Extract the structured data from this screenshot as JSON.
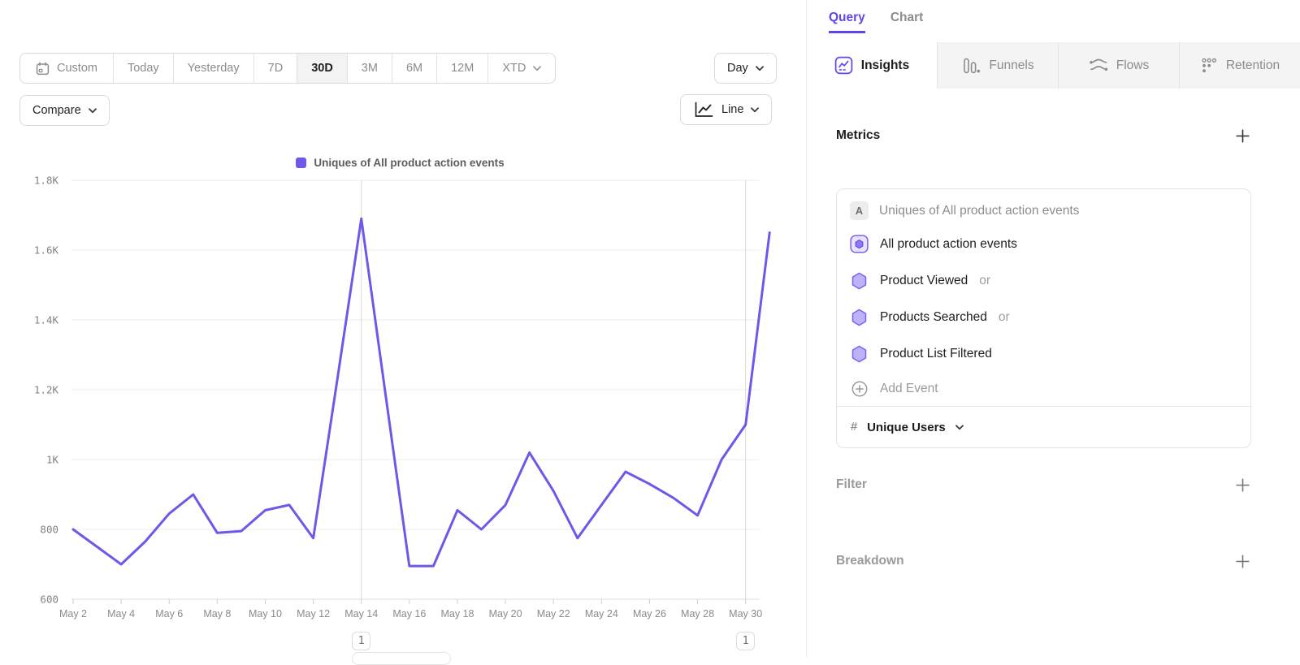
{
  "colors": {
    "accent": "#6245e9",
    "line": "#6d58e8",
    "hex_fill": "#c0b2fa",
    "hex_border": "#7b61f2",
    "gridline": "#ededed",
    "axis_line": "#dcdcdc",
    "annotation_line": "#d9d9d9",
    "axis_text": "#828282"
  },
  "toolbar": {
    "ranges": [
      {
        "label": "Custom",
        "icon": "calendar-icon",
        "active": false
      },
      {
        "label": "Today",
        "active": false
      },
      {
        "label": "Yesterday",
        "active": false
      },
      {
        "label": "7D",
        "active": false
      },
      {
        "label": "30D",
        "active": true
      },
      {
        "label": "3M",
        "active": false
      },
      {
        "label": "6M",
        "active": false
      },
      {
        "label": "12M",
        "active": false
      },
      {
        "label": "XTD",
        "active": false,
        "chevron": true
      }
    ],
    "granularity": {
      "label": "Day"
    },
    "compare": {
      "label": "Compare"
    },
    "chart_type": {
      "label": "Line",
      "icon": "line-chart-icon"
    }
  },
  "panel": {
    "tabs": [
      {
        "label": "Query",
        "active": true
      },
      {
        "label": "Chart",
        "active": false
      }
    ],
    "report_tabs": [
      {
        "label": "Insights",
        "icon": "insights-icon",
        "active": true
      },
      {
        "label": "Funnels",
        "icon": "funnels-icon",
        "active": false
      },
      {
        "label": "Flows",
        "icon": "flows-icon",
        "active": false
      },
      {
        "label": "Retention",
        "icon": "retention-icon",
        "active": false
      }
    ],
    "metrics": {
      "title": "Metrics",
      "summary": {
        "badge": "A",
        "label": "Uniques of All product action events"
      },
      "events": [
        {
          "label": "All product action events",
          "icon": "all-events-icon",
          "suffix": ""
        },
        {
          "label": "Product Viewed",
          "icon": "hexagon-icon",
          "suffix": "or"
        },
        {
          "label": "Products Searched",
          "icon": "hexagon-icon",
          "suffix": "or"
        },
        {
          "label": "Product List Filtered",
          "icon": "hexagon-icon",
          "suffix": ""
        }
      ],
      "add_event": "Add Event",
      "measurement": {
        "prefix": "#",
        "label": "Unique Users"
      }
    },
    "sections": [
      {
        "title": "Filter"
      },
      {
        "title": "Breakdown"
      }
    ]
  },
  "chart_data": {
    "type": "line",
    "title": "Uniques of All product action events",
    "legend": [
      {
        "label": "Uniques of All product action events",
        "color": "#6d58e8"
      }
    ],
    "x": [
      "May 2",
      "May 3",
      "May 4",
      "May 5",
      "May 6",
      "May 7",
      "May 8",
      "May 9",
      "May 10",
      "May 11",
      "May 12",
      "May 13",
      "May 14",
      "May 15",
      "May 16",
      "May 17",
      "May 18",
      "May 19",
      "May 20",
      "May 21",
      "May 22",
      "May 23",
      "May 24",
      "May 25",
      "May 26",
      "May 27",
      "May 28",
      "May 29",
      "May 30",
      "May 31"
    ],
    "series": [
      {
        "name": "Uniques of All product action events",
        "color": "#6d58e8",
        "values": [
          800,
          750,
          700,
          765,
          845,
          900,
          790,
          795,
          855,
          870,
          775,
          1230,
          1690,
          1190,
          695,
          695,
          855,
          800,
          870,
          1020,
          910,
          775,
          870,
          965,
          930,
          890,
          840,
          1000,
          1100,
          1650
        ]
      }
    ],
    "x_tick_labels": [
      "May 2",
      "May 4",
      "May 6",
      "May 8",
      "May 10",
      "May 12",
      "May 14",
      "May 16",
      "May 18",
      "May 20",
      "May 22",
      "May 24",
      "May 26",
      "May 28",
      "May 30"
    ],
    "ylim": [
      600,
      1800
    ],
    "y_ticks": [
      {
        "value": 600,
        "label": "600"
      },
      {
        "value": 800,
        "label": "800"
      },
      {
        "value": 1000,
        "label": "1K"
      },
      {
        "value": 1200,
        "label": "1.2K"
      },
      {
        "value": 1400,
        "label": "1.4K"
      },
      {
        "value": 1600,
        "label": "1.6K"
      },
      {
        "value": 1800,
        "label": "1.8K"
      }
    ],
    "grid": "horizontal",
    "legend_position": "top-center",
    "annotations": [
      {
        "x": "May 14",
        "label": "1"
      },
      {
        "x": "May 30",
        "label": "1"
      }
    ]
  }
}
